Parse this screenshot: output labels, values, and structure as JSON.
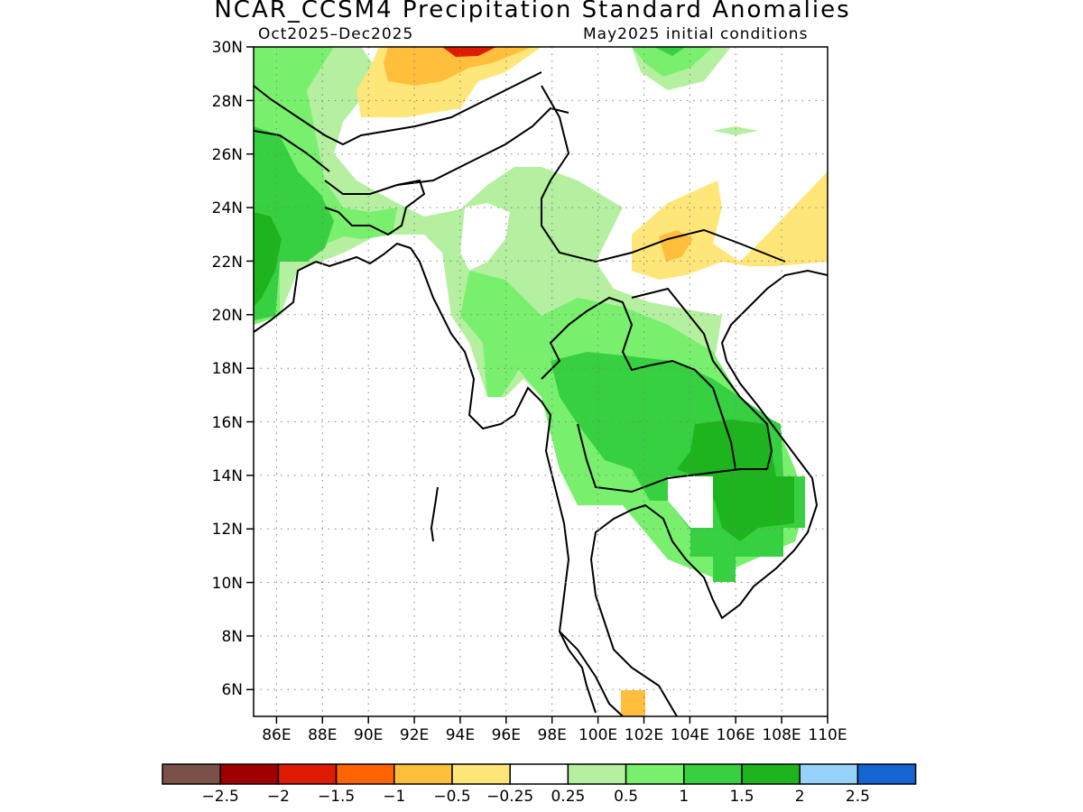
{
  "title": "NCAR_CCSM4 Precipitation Standard Anomalies",
  "subtitle_left": "Oct2025–Dec2025",
  "subtitle_right": "May2025 initial conditions",
  "map": {
    "lon_range": [
      85,
      110
    ],
    "lat_range": [
      5,
      30
    ],
    "x_ticks": [
      "86E",
      "88E",
      "90E",
      "92E",
      "94E",
      "96E",
      "98E",
      "100E",
      "102E",
      "104E",
      "106E",
      "108E",
      "110E"
    ],
    "y_ticks": [
      "6N",
      "8N",
      "10N",
      "12N",
      "14N",
      "16N",
      "18N",
      "20N",
      "22N",
      "24N",
      "26N",
      "28N",
      "30N"
    ],
    "grid": "dotted"
  },
  "colorbar": {
    "colors": [
      "#7a5148",
      "#a00000",
      "#e01c00",
      "#ff6400",
      "#ffbe3c",
      "#ffe678",
      "#ffffff",
      "#b4f0a0",
      "#78f06e",
      "#36d040",
      "#1eb41e",
      "#96d2fa",
      "#1464d2"
    ],
    "labels": [
      "−2.5",
      "−2",
      "−1.5",
      "−1",
      "−0.5",
      "−0.25",
      "0.25",
      "0.5",
      "1",
      "1.5",
      "2",
      "2.5"
    ]
  },
  "legend_colors": {
    "pos_0_25": "#b4f0a0",
    "pos_0_5": "#78f06e",
    "pos_1": "#36d040",
    "pos_1_5": "#1eb41e",
    "neg_0_25": "#ffe678",
    "neg_0_5": "#ffbe3c",
    "neg_1": "#ff6400"
  }
}
